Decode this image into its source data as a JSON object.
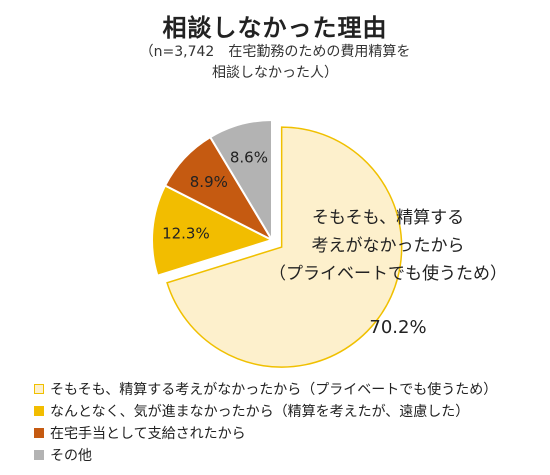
{
  "chart_data": {
    "type": "pie",
    "title": "相談しなかった理由",
    "subtitle_lines": [
      "（n=3,742　在宅勤務のための費用精算を",
      "相談しなかった人）"
    ],
    "slices": [
      {
        "label": "そもそも、精算する考えがなかったから（プライベートでも使うため）",
        "inner_label_lines": [
          "そもそも、精算する",
          "考えがなかったから",
          "（プライベートでも使うため）"
        ],
        "value": 70.2,
        "value_label": "70.2%",
        "color": "#fdf0cc",
        "stroke": "#f0c000",
        "exploded": true
      },
      {
        "label": "なんとなく、気が進まなかったから（精算を考えたが、遠慮した）",
        "value": 12.3,
        "value_label": "12.3%",
        "color": "#f2bd00",
        "exploded": false
      },
      {
        "label": "在宅手当として支給されたから",
        "value": 8.9,
        "value_label": "8.9%",
        "color": "#c55a11",
        "exploded": false
      },
      {
        "label": "その他",
        "value": 8.6,
        "value_label": "8.6%",
        "color": "#b3b3b3",
        "exploded": false
      }
    ],
    "legend_position": "bottom-left"
  }
}
